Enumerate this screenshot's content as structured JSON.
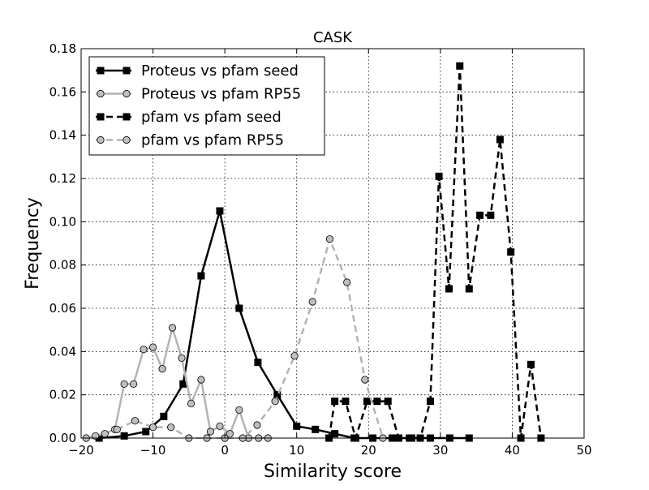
{
  "chart_data": {
    "type": "line",
    "title": "CASK",
    "xlabel": "Similarity score",
    "ylabel": "Frequency",
    "xlim": [
      -20,
      50
    ],
    "ylim": [
      0,
      0.18
    ],
    "x_ticks": [
      "−20",
      "−10",
      "0",
      "10",
      "20",
      "30",
      "40",
      "50"
    ],
    "x_tick_values": [
      -20,
      -10,
      0,
      10,
      20,
      30,
      40,
      50
    ],
    "y_ticks": [
      "0.00",
      "0.02",
      "0.04",
      "0.06",
      "0.08",
      "0.10",
      "0.12",
      "0.14",
      "0.16",
      "0.18"
    ],
    "y_tick_values": [
      0,
      0.02,
      0.04,
      0.06,
      0.08,
      0.1,
      0.12,
      0.14,
      0.16,
      0.18
    ],
    "grid": true,
    "legend_position": "top-left",
    "series": [
      {
        "name": "Proteus vs pfam seed",
        "color": "#000000",
        "marker_fill": "#000000",
        "marker": "square",
        "dash": "solid",
        "x": [
          -17.5,
          -14.0,
          -11.0,
          -8.5,
          -5.8,
          -3.3,
          -0.7,
          2.0,
          4.6,
          7.3,
          10.0,
          12.6,
          15.3,
          18.0,
          20.6,
          23.3,
          26.0,
          28.6,
          31.3,
          34.0
        ],
        "y": [
          0.0,
          0.001,
          0.003,
          0.01,
          0.025,
          0.075,
          0.105,
          0.06,
          0.035,
          0.02,
          0.0055,
          0.004,
          0.002,
          0.0,
          0.0,
          0.0,
          0.0,
          0.0,
          0.0,
          0.0
        ]
      },
      {
        "name": "Proteus vs pfam RP55",
        "color": "#b3b3b3",
        "marker_fill": "#bfbfbf",
        "marker": "circle",
        "dash": "solid",
        "x": [
          -19.3,
          -18.0,
          -16.7,
          -15.3,
          -14.0,
          -12.7,
          -11.3,
          -10.0,
          -8.7,
          -7.3,
          -6.0,
          -4.7,
          -3.3,
          -2.0,
          -0.7,
          0.7,
          2.0,
          3.3,
          4.7,
          6.0
        ],
        "y": [
          0.0,
          0.001,
          0.002,
          0.004,
          0.025,
          0.025,
          0.041,
          0.042,
          0.032,
          0.051,
          0.037,
          0.016,
          0.027,
          0.003,
          0.0055,
          0.002,
          0.013,
          0.0,
          0.0,
          0.0
        ]
      },
      {
        "name": "pfam vs pfam seed",
        "color": "#000000",
        "marker_fill": "#000000",
        "marker": "square",
        "dash": "dashed",
        "x": [
          14.5,
          15.3,
          16.8,
          18.2,
          19.8,
          21.2,
          22.7,
          24.2,
          25.7,
          27.2,
          28.6,
          29.8,
          31.2,
          32.7,
          34.0,
          35.5,
          37.0,
          38.3,
          39.8,
          41.2,
          42.6,
          44.0
        ],
        "y": [
          0.0,
          0.017,
          0.017,
          0.0,
          0.017,
          0.017,
          0.017,
          0.0,
          0.0,
          0.0,
          0.017,
          0.121,
          0.069,
          0.172,
          0.069,
          0.103,
          0.103,
          0.138,
          0.086,
          0.0,
          0.034,
          0.0
        ]
      },
      {
        "name": "pfam vs pfam RP55",
        "color": "#b3b3b3",
        "marker_fill": "#bfbfbf",
        "marker": "circle",
        "dash": "dashed",
        "x": [
          -15.0,
          -12.5,
          -10.0,
          -7.5,
          -5.0,
          -2.5,
          0.0,
          2.5,
          4.5,
          7.0,
          9.7,
          12.2,
          14.6,
          17.0,
          19.5,
          22.0
        ],
        "y": [
          0.004,
          0.008,
          0.005,
          0.005,
          0.0,
          0.0,
          0.0,
          0.0,
          0.006,
          0.017,
          0.038,
          0.063,
          0.092,
          0.072,
          0.027,
          0.0
        ]
      }
    ]
  }
}
